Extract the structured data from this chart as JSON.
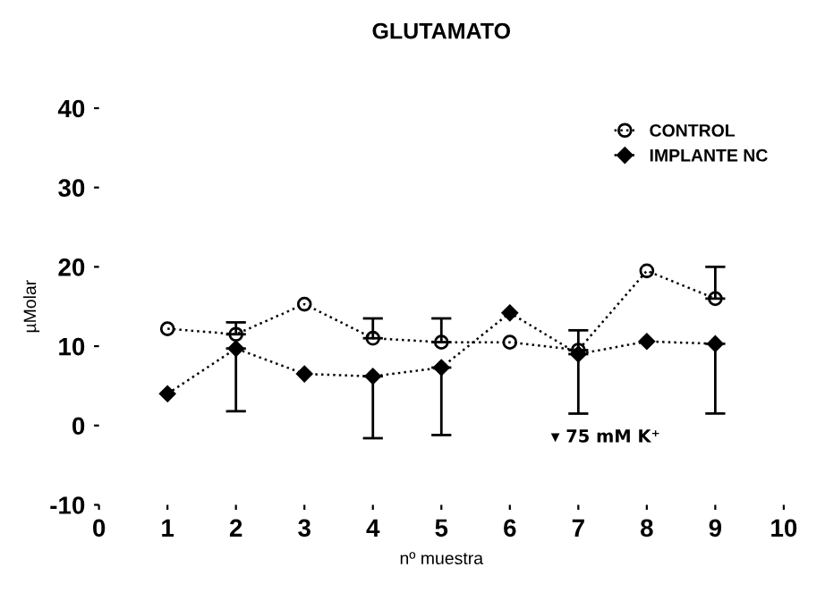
{
  "chart_data": {
    "type": "line",
    "title": "GLUTAMATO",
    "xlabel": "nº muestra",
    "ylabel": "µMolar",
    "x": [
      1,
      2,
      3,
      4,
      5,
      6,
      7,
      8,
      9
    ],
    "series": [
      {
        "name": "CONTROL",
        "color": "#000000",
        "marker": "circle",
        "values": [
          12.2,
          11.5,
          15.3,
          11,
          10.5,
          10.5,
          9.5,
          19.5,
          16
        ],
        "errors": [
          null,
          [
            11.5,
            13
          ],
          null,
          [
            11,
            13.5
          ],
          [
            10.5,
            13.5
          ],
          null,
          [
            9.5,
            12
          ],
          null,
          [
            16,
            20
          ]
        ]
      },
      {
        "name": "IMPLANTE NC",
        "color": "#000000",
        "marker": "diamond",
        "values": [
          4,
          9.7,
          6.5,
          6.2,
          7.3,
          14.2,
          9,
          10.6,
          10.3
        ],
        "errors": [
          null,
          [
            1.8,
            9.7
          ],
          null,
          [
            -1.6,
            6.2
          ],
          [
            -1.2,
            7.3
          ],
          null,
          [
            1.5,
            9
          ],
          null,
          [
            1.5,
            10.3
          ]
        ]
      }
    ],
    "annotations": [
      "▾ 75 mM K⁺"
    ],
    "xlim": [
      0,
      10
    ],
    "ylim": [
      -10,
      40
    ],
    "xticks": [
      0,
      1,
      2,
      3,
      4,
      5,
      6,
      7,
      8,
      9,
      10
    ],
    "yticks": [
      -10,
      0,
      10,
      20,
      30,
      40
    ],
    "line_style": "dotted",
    "grid": false,
    "legend": "top right"
  }
}
